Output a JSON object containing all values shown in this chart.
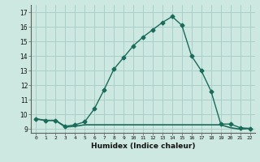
{
  "xlabel": "Humidex (Indice chaleur)",
  "bg_color": "#cce8e0",
  "grid_color": "#a8cfc8",
  "line_color": "#1a6b5a",
  "x_main": [
    0,
    1,
    2,
    3,
    4,
    5,
    6,
    7,
    8,
    9,
    10,
    11,
    12,
    13,
    14,
    15,
    16,
    17,
    18,
    19,
    20,
    21,
    22
  ],
  "y_main": [
    9.7,
    9.6,
    9.6,
    9.2,
    9.3,
    9.5,
    10.4,
    11.7,
    13.1,
    13.9,
    14.7,
    15.3,
    15.8,
    16.3,
    16.7,
    16.1,
    14.0,
    13.0,
    11.6,
    9.35,
    9.35,
    9.1,
    9.05
  ],
  "x_flat": [
    0,
    1,
    2,
    3,
    4,
    5,
    6,
    7,
    8,
    9,
    10,
    11,
    12,
    13,
    14,
    15,
    16,
    17,
    18,
    19,
    20,
    21,
    22
  ],
  "y_flat": [
    9.7,
    9.6,
    9.6,
    9.15,
    9.2,
    9.3,
    9.3,
    9.3,
    9.3,
    9.3,
    9.3,
    9.3,
    9.3,
    9.3,
    9.3,
    9.3,
    9.3,
    9.3,
    9.3,
    9.3,
    9.1,
    9.0,
    9.05
  ],
  "xlim": [
    -0.5,
    22.5
  ],
  "ylim": [
    8.75,
    17.5
  ],
  "yticks": [
    9,
    10,
    11,
    12,
    13,
    14,
    15,
    16,
    17
  ],
  "xticks": [
    0,
    1,
    2,
    3,
    4,
    5,
    6,
    7,
    8,
    9,
    10,
    11,
    12,
    13,
    14,
    15,
    16,
    17,
    18,
    19,
    20,
    21,
    22
  ]
}
